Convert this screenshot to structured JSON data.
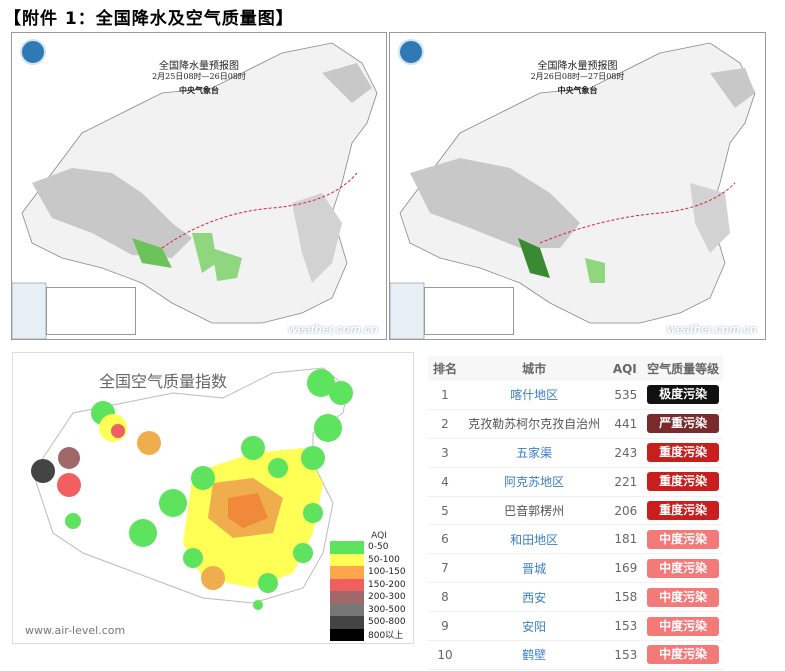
{
  "title": "【附件 1：全国降水及空气质量图】",
  "maps": [
    {
      "title": "全国降水量预报图",
      "time": "2月25日08时—26日08时",
      "org": "中央气象台",
      "watermark": "weather.com.cn"
    },
    {
      "title": "全国降水量预报图",
      "time": "2月26日08时—27日08时",
      "org": "中央气象台",
      "watermark": "weather.com.cn"
    }
  ],
  "aqi_map": {
    "title": "全国空气质量指数",
    "site": "www.air-level.com",
    "legend_title": "AQI",
    "legend": [
      {
        "label": "0-50",
        "color": "#5ee35e"
      },
      {
        "label": "50-100",
        "color": "#ffff55"
      },
      {
        "label": "100-150",
        "color": "#ffa64d"
      },
      {
        "label": "150-200",
        "color": "#f06060"
      },
      {
        "label": "200-300",
        "color": "#a06868"
      },
      {
        "label": "300-500",
        "color": "#777777"
      },
      {
        "label": "500-800",
        "color": "#444444"
      },
      {
        "label": "800以上",
        "color": "#000000"
      }
    ]
  },
  "table": {
    "headers": [
      "排名",
      "城市",
      "AQI",
      "空气质量等级"
    ],
    "rows": [
      {
        "rank": "1",
        "city": "喀什地区",
        "aqi": "535",
        "level": "极度污染",
        "color": "#111111",
        "link": true
      },
      {
        "rank": "2",
        "city": "克孜勒苏柯尔克孜自治州",
        "aqi": "441",
        "level": "严重污染",
        "color": "#7a2a2a",
        "link": false
      },
      {
        "rank": "3",
        "city": "五家渠",
        "aqi": "243",
        "level": "重度污染",
        "color": "#c81e1e",
        "link": true
      },
      {
        "rank": "4",
        "city": "阿克苏地区",
        "aqi": "221",
        "level": "重度污染",
        "color": "#c81e1e",
        "link": true
      },
      {
        "rank": "5",
        "city": "巴音郭楞州",
        "aqi": "206",
        "level": "重度污染",
        "color": "#c81e1e",
        "link": false
      },
      {
        "rank": "6",
        "city": "和田地区",
        "aqi": "181",
        "level": "中度污染",
        "color": "#f47a7a",
        "link": true
      },
      {
        "rank": "7",
        "city": "晋城",
        "aqi": "169",
        "level": "中度污染",
        "color": "#f47a7a",
        "link": true
      },
      {
        "rank": "8",
        "city": "西安",
        "aqi": "158",
        "level": "中度污染",
        "color": "#f47a7a",
        "link": true
      },
      {
        "rank": "9",
        "city": "安阳",
        "aqi": "153",
        "level": "中度污染",
        "color": "#f47a7a",
        "link": true
      },
      {
        "rank": "10",
        "city": "鹤壁",
        "aqi": "153",
        "level": "中度污染",
        "color": "#f47a7a",
        "link": true
      }
    ]
  }
}
